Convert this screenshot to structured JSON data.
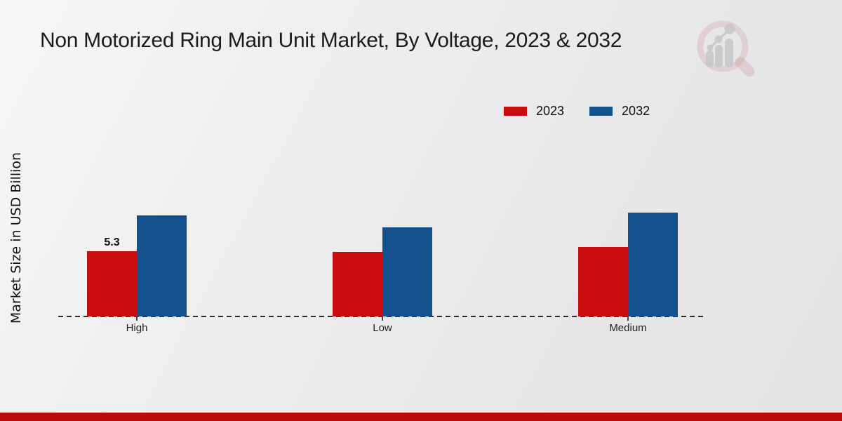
{
  "title": "Non Motorized Ring Main Unit Market, By Voltage, 2023 & 2032",
  "y_axis_label": "Market Size in USD Billion",
  "legend": {
    "items": [
      {
        "label": "2023",
        "color": "#c90d0e"
      },
      {
        "label": "2032",
        "color": "#14528f"
      }
    ]
  },
  "colors": {
    "series_2023": "#c90d0e",
    "series_2032": "#14528f",
    "bottom_strip": "#bb0a0a",
    "baseline": "#2d2d2d",
    "background": "#ebebed"
  },
  "chart_data": {
    "type": "bar",
    "title": "Non Motorized Ring Main Unit Market, By Voltage, 2023 & 2032",
    "categories": [
      "High",
      "Low",
      "Medium"
    ],
    "series": [
      {
        "name": "2023",
        "color": "#c90d0e",
        "values": [
          5.3,
          5.2,
          5.6
        ]
      },
      {
        "name": "2032",
        "color": "#14528f",
        "values": [
          8.2,
          7.2,
          8.4
        ]
      }
    ],
    "xlabel": "",
    "ylabel": "Market Size in USD Billion",
    "ylim": [
      0,
      10
    ],
    "grid": false,
    "y_axis_ticks_visible": false,
    "legend_position": "top-right",
    "baseline_style": "dashed",
    "bar_labels": [
      {
        "series": "2023",
        "category": "High",
        "text": "5.3"
      }
    ]
  }
}
